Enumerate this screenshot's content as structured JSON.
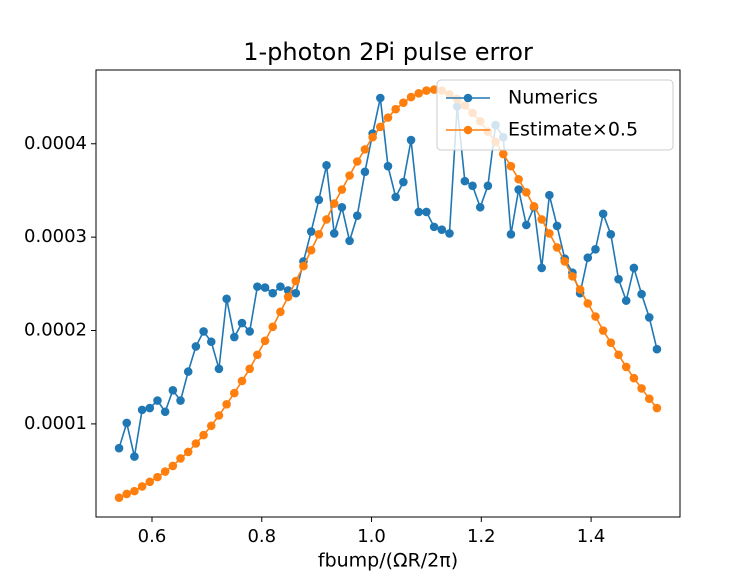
{
  "chart_data": {
    "type": "line",
    "title": "1-photon 2Pi pulse error",
    "xlabel": "fbump/(ΩR/2π)",
    "x": [
      0.54,
      0.554,
      0.568,
      0.582,
      0.596,
      0.61,
      0.624,
      0.638,
      0.652,
      0.666,
      0.68,
      0.694,
      0.708,
      0.722,
      0.736,
      0.75,
      0.764,
      0.778,
      0.792,
      0.806,
      0.82,
      0.834,
      0.848,
      0.862,
      0.876,
      0.89,
      0.904,
      0.918,
      0.932,
      0.946,
      0.96,
      0.974,
      0.988,
      1.002,
      1.016,
      1.03,
      1.044,
      1.058,
      1.072,
      1.086,
      1.1,
      1.114,
      1.128,
      1.142,
      1.156,
      1.17,
      1.184,
      1.198,
      1.212,
      1.226,
      1.24,
      1.254,
      1.268,
      1.282,
      1.296,
      1.31,
      1.324,
      1.338,
      1.352,
      1.366,
      1.38,
      1.394,
      1.408,
      1.422,
      1.436,
      1.45,
      1.464,
      1.478,
      1.492,
      1.506,
      1.52
    ],
    "series": [
      {
        "name": "Numerics",
        "color": "#1f77b4",
        "values": [
          7.4e-05,
          0.000101,
          6.5e-05,
          0.000115,
          0.000117,
          0.000125,
          0.000113,
          0.000136,
          0.000125,
          0.000156,
          0.000183,
          0.000199,
          0.000188,
          0.000159,
          0.000234,
          0.000193,
          0.000208,
          0.000199,
          0.000247,
          0.000246,
          0.00024,
          0.000247,
          0.000243,
          0.00024,
          0.000274,
          0.000306,
          0.00034,
          0.000377,
          0.000304,
          0.000332,
          0.000296,
          0.000323,
          0.00037,
          0.000411,
          0.000449,
          0.000376,
          0.000343,
          0.000359,
          0.000404,
          0.000327,
          0.000327,
          0.000311,
          0.000308,
          0.000304,
          0.00044,
          0.00036,
          0.000355,
          0.000332,
          0.000355,
          0.00042,
          0.000407,
          0.000303,
          0.000351,
          0.000313,
          0.000332,
          0.000267,
          0.000345,
          0.000312,
          0.000277,
          0.000262,
          0.00024,
          0.000278,
          0.000287,
          0.000325,
          0.000303,
          0.000255,
          0.000232,
          0.000267,
          0.000239,
          0.000214,
          0.00018
        ]
      },
      {
        "name": "Estimate×0.5",
        "color": "#ff7f0e",
        "values": [
          2.1e-05,
          2.5e-05,
          2.8e-05,
          3.3e-05,
          3.8e-05,
          4.3e-05,
          4.9e-05,
          5.5e-05,
          6.3e-05,
          7e-05,
          7.9e-05,
          8.8e-05,
          9.8e-05,
          0.000109,
          0.000121,
          0.000133,
          0.000146,
          0.000159,
          0.000174,
          0.000189,
          0.000204,
          0.00022,
          0.000236,
          0.000253,
          0.000269,
          0.000286,
          0.000303,
          0.000319,
          0.000336,
          0.000351,
          0.000366,
          0.000381,
          0.000394,
          0.000407,
          0.000418,
          0.000428,
          0.000437,
          0.000444,
          0.00045,
          0.000454,
          0.000457,
          0.000458,
          0.000457,
          0.000453,
          0.000448,
          0.000441,
          0.000433,
          0.000424,
          0.000413,
          0.000402,
          0.000389,
          0.000376,
          0.000362,
          0.000348,
          0.000333,
          0.000319,
          0.000304,
          0.000289,
          0.000274,
          0.000258,
          0.000244,
          0.000229,
          0.000215,
          0.0002,
          0.000187,
          0.000174,
          0.000161,
          0.000149,
          0.000138,
          0.000127,
          0.000117
        ]
      }
    ],
    "xlim": [
      0.498,
      1.562
    ],
    "ylim": [
      3e-07,
      0.000479
    ],
    "xticks": [
      0.6,
      0.8,
      {
        "value": 1,
        "label": "1.0"
      },
      1.2,
      1.4
    ],
    "yticks": [
      0.0001,
      0.0002,
      0.0003,
      0.0004
    ],
    "legend": "upper right"
  }
}
